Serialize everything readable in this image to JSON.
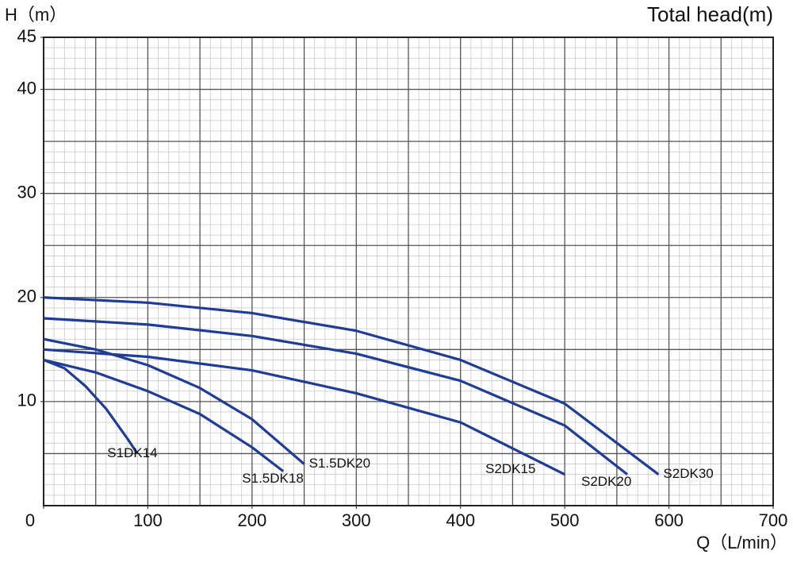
{
  "chart_data": {
    "type": "line",
    "title": "Total head(m)",
    "y_label": "H（m）",
    "x_label": "Q（L/min）",
    "xlim": [
      0,
      700
    ],
    "xticks": [
      0,
      100,
      200,
      300,
      400,
      500,
      600,
      700
    ],
    "ylim": [
      0,
      45
    ],
    "yticks": [
      10,
      20,
      30,
      40,
      45
    ],
    "grid": {
      "major": [
        50,
        5
      ],
      "minor": [
        10,
        1
      ]
    },
    "series": [
      {
        "name": "S1DK14",
        "color": "#1f3c96",
        "x": [
          0,
          20,
          40,
          60,
          80,
          90
        ],
        "values": [
          14,
          13.2,
          11.5,
          9.3,
          6.5,
          5
        ]
      },
      {
        "name": "S1.5DK18",
        "color": "#1f3c96",
        "x": [
          0,
          50,
          100,
          150,
          200,
          230
        ],
        "values": [
          14,
          12.8,
          11,
          8.8,
          5.6,
          3.3
        ]
      },
      {
        "name": "S1.5DK20",
        "color": "#1f3c96",
        "x": [
          0,
          50,
          100,
          150,
          200,
          250
        ],
        "values": [
          16,
          15,
          13.5,
          11.3,
          8.3,
          4
        ]
      },
      {
        "name": "S2DK15",
        "color": "#1f3c96",
        "x": [
          0,
          100,
          200,
          300,
          400,
          500
        ],
        "values": [
          15,
          14.3,
          13,
          10.8,
          8,
          3
        ]
      },
      {
        "name": "S2DK20",
        "color": "#1f3c96",
        "x": [
          0,
          100,
          200,
          300,
          400,
          500,
          560
        ],
        "values": [
          18,
          17.4,
          16.3,
          14.6,
          12,
          7.7,
          3
        ]
      },
      {
        "name": "S2DK30",
        "color": "#1f3c96",
        "x": [
          0,
          100,
          200,
          300,
          400,
          500,
          590
        ],
        "values": [
          20,
          19.5,
          18.5,
          16.8,
          14,
          9.8,
          3
        ]
      }
    ]
  }
}
